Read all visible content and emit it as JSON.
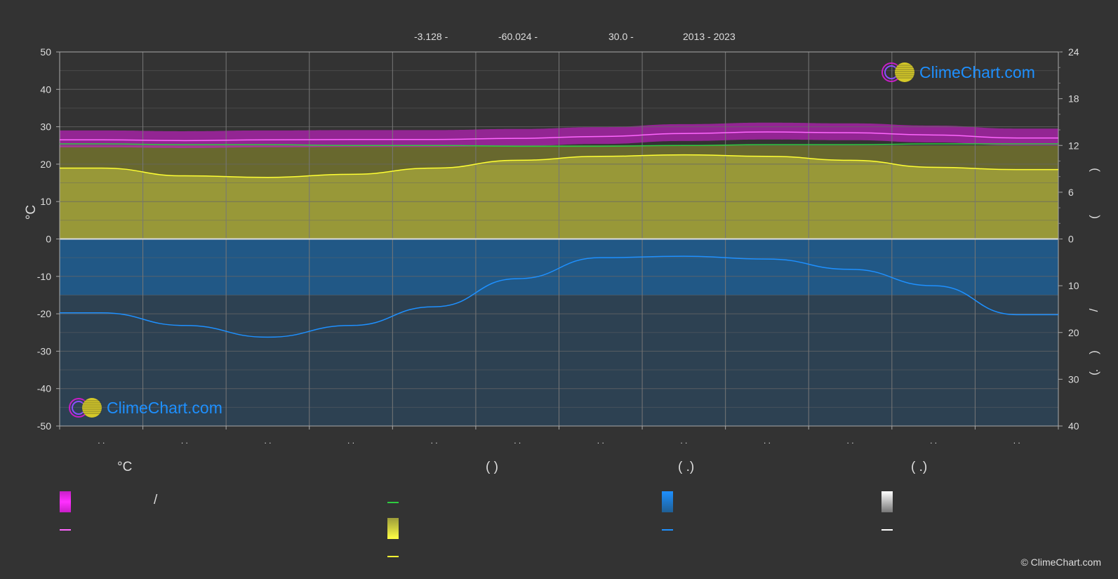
{
  "header": {
    "lat": "-3.128 -",
    "lon": "-60.024 -",
    "elev": "30.0 -",
    "years": "2013 - 2023"
  },
  "colors": {
    "background": "#333333",
    "grid": "#555555",
    "sunshine_fill": "#9d9d3a",
    "precip_fill": "#1f5f95",
    "temp_band": "#c81ec8",
    "temp_mean": "#ff66ff",
    "daylight": "#2ecc40",
    "sunshine_line": "#ffff33",
    "precip_line": "#1e90ff",
    "logo_text": "#1e90ff"
  },
  "logo": {
    "text": "ClimeChart.com"
  },
  "chart_data": {
    "type": "line",
    "months": 12,
    "month_tick_labels": [
      ". .",
      ". .",
      ". .",
      ". .",
      ". .",
      ". .",
      ". .",
      ". .",
      ". .",
      ". .",
      ". .",
      ". ."
    ],
    "y_left": {
      "label": "°C",
      "ticks": [
        50,
        40,
        30,
        20,
        10,
        0,
        -10,
        -20,
        -30,
        -40,
        -50
      ],
      "ylim": [
        -50,
        50
      ]
    },
    "y_right_top": {
      "ticks": [
        24,
        18,
        12,
        6,
        0
      ],
      "ylim": [
        0,
        24
      ],
      "label_fragments": [
        ")",
        "("
      ]
    },
    "y_right_bottom": {
      "ticks": [
        0,
        10,
        20,
        30,
        40
      ],
      "ylim": [
        0,
        40
      ],
      "label_fragments": [
        "/",
        "(",
        ".",
        ")"
      ]
    },
    "series": [
      {
        "key": "temp_mean",
        "values": [
          26.5,
          26.3,
          26.5,
          26.6,
          26.6,
          26.9,
          27.4,
          28.2,
          28.6,
          28.4,
          27.8,
          27.0
        ]
      },
      {
        "key": "daylight",
        "values": [
          12.2,
          12.1,
          12.1,
          12.0,
          12.0,
          11.9,
          11.9,
          12.0,
          12.1,
          12.1,
          12.2,
          12.2
        ]
      },
      {
        "key": "sunshine",
        "values": [
          9.1,
          8.1,
          7.9,
          8.3,
          9.1,
          10.1,
          10.6,
          10.8,
          10.6,
          10.1,
          9.2,
          8.9
        ]
      },
      {
        "key": "precipitation",
        "values": [
          15.8,
          18.5,
          21.0,
          18.5,
          14.5,
          8.5,
          4.0,
          3.7,
          4.3,
          6.5,
          10.0,
          16.2
        ]
      }
    ]
  },
  "legend": {
    "col1_header": "°C",
    "col1_slash": "/",
    "col2_header": "(              )",
    "col3_header": "(    .)",
    "col4_header": "(    .)"
  },
  "copyright": "© ClimeChart.com"
}
